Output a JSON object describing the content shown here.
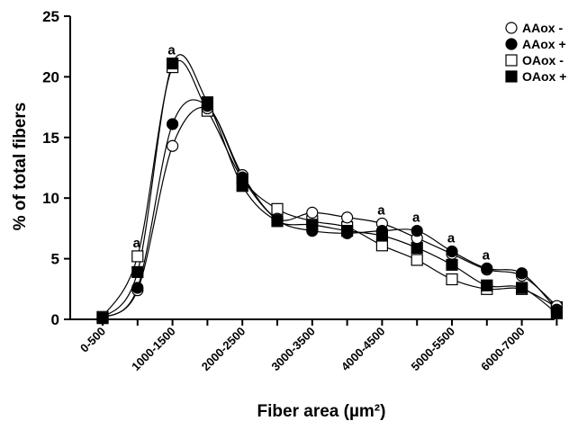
{
  "chart_data": {
    "type": "line",
    "xlabel": "Fiber area (µm²)",
    "ylabel": "% of total fibers",
    "ylim": [
      0,
      25
    ],
    "yticks": [
      0,
      5,
      10,
      15,
      20,
      25
    ],
    "x_tick_labels": [
      "0-500",
      "1000-1500",
      "2000-2500",
      "3000-3500",
      "4000-4500",
      "5000-5500",
      "6000-7000"
    ],
    "categories": [
      "0-500",
      "500-1000",
      "1000-1500",
      "1500-2000",
      "2000-2500",
      "2500-3000",
      "3000-3500",
      "3500-4000",
      "4000-4500",
      "4500-5000",
      "5000-5500",
      "5500-6000",
      "6000-7000",
      ">7000"
    ],
    "smooth": true,
    "grid": false,
    "legend_position": "top-right",
    "series": [
      {
        "name": "AAox -",
        "marker": "circle",
        "fill": "open",
        "color": "#000000",
        "values": [
          0.1,
          2.4,
          14.3,
          17.4,
          11.9,
          8.3,
          8.8,
          8.4,
          7.9,
          6.7,
          5.4,
          4.1,
          3.6,
          1.1
        ]
      },
      {
        "name": "AAox +",
        "marker": "circle",
        "fill": "filled",
        "color": "#000000",
        "values": [
          0.1,
          2.6,
          16.1,
          17.6,
          11.7,
          8.2,
          7.3,
          7.1,
          7.3,
          7.3,
          5.6,
          4.2,
          3.8,
          0.8
        ]
      },
      {
        "name": "OAox -",
        "marker": "square",
        "fill": "open",
        "color": "#000000",
        "values": [
          0.2,
          5.2,
          20.8,
          17.2,
          11.6,
          9.1,
          8.1,
          7.6,
          6.1,
          4.9,
          3.3,
          2.5,
          2.5,
          1.0
        ]
      },
      {
        "name": "OAox +",
        "marker": "square",
        "fill": "filled",
        "color": "#000000",
        "values": [
          0.1,
          3.9,
          21.1,
          17.9,
          11.0,
          8.1,
          7.8,
          7.3,
          6.9,
          5.9,
          4.5,
          2.8,
          2.6,
          0.5
        ]
      }
    ],
    "annotations": [
      {
        "text": "a",
        "category": "500-1000"
      },
      {
        "text": "a",
        "category": "1000-1500"
      },
      {
        "text": "a",
        "category": "4000-4500"
      },
      {
        "text": "a",
        "category": "4500-5000"
      },
      {
        "text": "a",
        "category": "5000-5500"
      },
      {
        "text": "a",
        "category": "5500-6000"
      }
    ]
  }
}
